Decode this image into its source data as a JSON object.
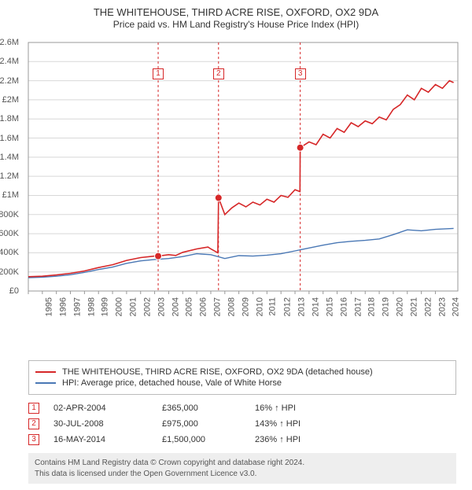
{
  "title_line1": "THE WHITEHOUSE, THIRD ACRE RISE, OXFORD, OX2 9DA",
  "title_line2": "Price paid vs. HM Land Registry's House Price Index (HPI)",
  "colors": {
    "main_line": "#d62728",
    "hpi_line": "#4a78b5",
    "grid": "#d8d8d8",
    "axis": "#999999",
    "marker_border": "#d62728",
    "footer_bg": "#eeeeee",
    "text": "#333333"
  },
  "chart": {
    "type": "line",
    "xlim": [
      1995,
      2025.6
    ],
    "ylim": [
      0,
      2600000
    ],
    "y_ticks": [
      0,
      200000,
      400000,
      600000,
      800000,
      1000000,
      1200000,
      1400000,
      1600000,
      1800000,
      2000000,
      2200000,
      2400000,
      2600000
    ],
    "y_tick_labels": [
      "£0",
      "£200K",
      "£400K",
      "£600K",
      "£800K",
      "£1M",
      "£1.2M",
      "£1.4M",
      "£1.6M",
      "£1.8M",
      "£2M",
      "£2.2M",
      "£2.4M",
      "£2.6M"
    ],
    "x_ticks": [
      1995,
      1996,
      1997,
      1998,
      1999,
      2000,
      2001,
      2002,
      2003,
      2004,
      2005,
      2006,
      2007,
      2008,
      2009,
      2010,
      2011,
      2012,
      2013,
      2014,
      2015,
      2016,
      2017,
      2018,
      2019,
      2020,
      2021,
      2022,
      2023,
      2024
    ],
    "series_main": {
      "name": "THE WHITEHOUSE, THIRD ACRE RISE, OXFORD, OX2 9DA (detached house)",
      "color": "#d62728",
      "width": 1.6,
      "data": [
        [
          1995,
          150000
        ],
        [
          1996,
          155000
        ],
        [
          1997,
          168000
        ],
        [
          1998,
          185000
        ],
        [
          1999,
          210000
        ],
        [
          2000,
          245000
        ],
        [
          2001,
          275000
        ],
        [
          2002,
          320000
        ],
        [
          2003,
          350000
        ],
        [
          2004,
          365000
        ],
        [
          2004.25,
          365000
        ],
        [
          2005,
          380000
        ],
        [
          2005.5,
          372000
        ],
        [
          2006,
          405000
        ],
        [
          2007,
          440000
        ],
        [
          2007.8,
          460000
        ],
        [
          2008,
          440000
        ],
        [
          2008.5,
          400000
        ],
        [
          2008.55,
          975000
        ],
        [
          2009,
          800000
        ],
        [
          2009.5,
          870000
        ],
        [
          2010,
          920000
        ],
        [
          2010.5,
          880000
        ],
        [
          2011,
          930000
        ],
        [
          2011.5,
          900000
        ],
        [
          2012,
          960000
        ],
        [
          2012.5,
          930000
        ],
        [
          2013,
          1000000
        ],
        [
          2013.5,
          980000
        ],
        [
          2014,
          1060000
        ],
        [
          2014.35,
          1040000
        ],
        [
          2014.37,
          1500000
        ],
        [
          2015,
          1560000
        ],
        [
          2015.5,
          1530000
        ],
        [
          2016,
          1640000
        ],
        [
          2016.5,
          1600000
        ],
        [
          2017,
          1700000
        ],
        [
          2017.5,
          1660000
        ],
        [
          2018,
          1760000
        ],
        [
          2018.5,
          1720000
        ],
        [
          2019,
          1780000
        ],
        [
          2019.5,
          1750000
        ],
        [
          2020,
          1820000
        ],
        [
          2020.5,
          1790000
        ],
        [
          2021,
          1900000
        ],
        [
          2021.5,
          1950000
        ],
        [
          2022,
          2050000
        ],
        [
          2022.5,
          2000000
        ],
        [
          2023,
          2120000
        ],
        [
          2023.5,
          2080000
        ],
        [
          2024,
          2160000
        ],
        [
          2024.5,
          2120000
        ],
        [
          2025,
          2200000
        ],
        [
          2025.3,
          2180000
        ]
      ],
      "sale_points": [
        {
          "x": 2004.25,
          "y": 365000
        },
        {
          "x": 2008.55,
          "y": 975000
        },
        {
          "x": 2014.37,
          "y": 1500000
        }
      ]
    },
    "series_hpi": {
      "name": "HPI: Average price, detached house, Vale of White Horse",
      "color": "#4a78b5",
      "width": 1.4,
      "data": [
        [
          1995,
          140000
        ],
        [
          1996,
          145000
        ],
        [
          1997,
          155000
        ],
        [
          1998,
          170000
        ],
        [
          1999,
          195000
        ],
        [
          2000,
          225000
        ],
        [
          2001,
          250000
        ],
        [
          2002,
          290000
        ],
        [
          2003,
          315000
        ],
        [
          2004,
          330000
        ],
        [
          2005,
          340000
        ],
        [
          2006,
          360000
        ],
        [
          2007,
          390000
        ],
        [
          2008,
          380000
        ],
        [
          2009,
          340000
        ],
        [
          2010,
          370000
        ],
        [
          2011,
          365000
        ],
        [
          2012,
          375000
        ],
        [
          2013,
          390000
        ],
        [
          2014,
          420000
        ],
        [
          2015,
          450000
        ],
        [
          2016,
          480000
        ],
        [
          2017,
          505000
        ],
        [
          2018,
          520000
        ],
        [
          2019,
          530000
        ],
        [
          2020,
          545000
        ],
        [
          2021,
          590000
        ],
        [
          2022,
          640000
        ],
        [
          2023,
          630000
        ],
        [
          2024,
          645000
        ],
        [
          2025.3,
          655000
        ]
      ]
    },
    "markers": [
      {
        "num": "1",
        "x": 2004.25,
        "y_top": 2270000
      },
      {
        "num": "2",
        "x": 2008.55,
        "y_top": 2270000
      },
      {
        "num": "3",
        "x": 2014.37,
        "y_top": 2270000
      }
    ]
  },
  "legend": [
    {
      "color": "#d62728",
      "label": "THE WHITEHOUSE, THIRD ACRE RISE, OXFORD, OX2 9DA (detached house)"
    },
    {
      "color": "#4a78b5",
      "label": "HPI: Average price, detached house, Vale of White Horse"
    }
  ],
  "sales": [
    {
      "num": "1",
      "date": "02-APR-2004",
      "price": "£365,000",
      "delta": "16% ↑ HPI"
    },
    {
      "num": "2",
      "date": "30-JUL-2008",
      "price": "£975,000",
      "delta": "143% ↑ HPI"
    },
    {
      "num": "3",
      "date": "16-MAY-2014",
      "price": "£1,500,000",
      "delta": "236% ↑ HPI"
    }
  ],
  "footer_line1": "Contains HM Land Registry data © Crown copyright and database right 2024.",
  "footer_line2": "This data is licensed under the Open Government Licence v3.0."
}
